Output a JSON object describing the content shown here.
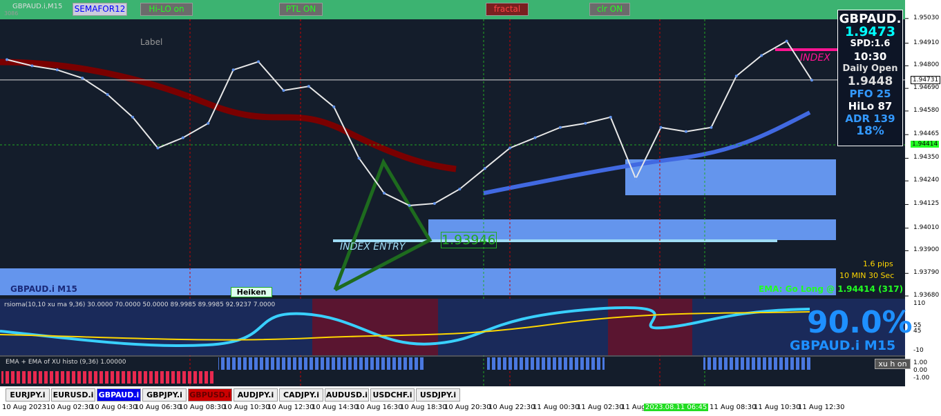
{
  "window": {
    "symbol": "GBPAUD.i,M15",
    "bars": "3086",
    "label": "Label"
  },
  "toolbar": [
    "SEMAFOR12",
    "Hi-LO on",
    "PTL ON",
    "fractal",
    "clr ON"
  ],
  "info_panel": {
    "symbol": "GBPAUD.",
    "bid": "1.9473",
    "spread": "SPD:1.6",
    "timer": "10:30",
    "daily_open_label": "Daily Open",
    "daily_open": "1.9448",
    "pfo": "PFO  25",
    "hilo": "HiLo  87",
    "adr": "ADR 139",
    "percent": "18%"
  },
  "price": {
    "ylim": [
      1.9367,
      1.9512
    ],
    "yticks": [
      {
        "value": 1.9503,
        "label": "1.95030"
      },
      {
        "value": 1.9491,
        "label": "1.94910"
      },
      {
        "value": 1.948,
        "label": "1.94800"
      },
      {
        "value": 1.9469,
        "label": "1.94690"
      },
      {
        "value": 1.9458,
        "label": "1.94580"
      },
      {
        "value": 1.94465,
        "label": "1.94465"
      },
      {
        "value": 1.9435,
        "label": "1.94350"
      },
      {
        "value": 1.9424,
        "label": "1.94240"
      },
      {
        "value": 1.94125,
        "label": "1.94125"
      },
      {
        "value": 1.9401,
        "label": "1.94010"
      },
      {
        "value": 1.939,
        "label": "1.93900"
      },
      {
        "value": 1.9379,
        "label": "1.93790"
      },
      {
        "value": 1.9368,
        "label": "1.93680"
      }
    ],
    "current": {
      "value": 1.94731,
      "label": "1.94731"
    },
    "ema": {
      "value": 1.94414,
      "label": "1.94414"
    },
    "values": [
      1.9483,
      1.948,
      1.9478,
      1.9474,
      1.9466,
      1.9455,
      1.944,
      1.9445,
      1.9452,
      1.9478,
      1.9482,
      1.9468,
      1.947,
      1.946,
      1.9435,
      1.9418,
      1.9412,
      1.9413,
      1.942,
      1.943,
      1.944,
      1.9445,
      1.945,
      1.9452,
      1.9455,
      1.9425,
      1.945,
      1.9448,
      1.945,
      1.9475,
      1.9485,
      1.9492,
      1.9473
    ]
  },
  "chart_texts": {
    "index_entry": "INDEX ENTRY",
    "entry_price": "1.93946",
    "index": "INDEX",
    "pips": "1.6 pips",
    "timer": "10 MIN 30 Sec",
    "ema_signal": "EMA: Go Long @ 1.94414 (317)",
    "symbol_label": "GBPAUD.i M15",
    "heiken": "Heiken"
  },
  "rsioma": {
    "title": "rsioma(10,10 xu ma 9,36) 30.0000 70.0000 50.0000 89.9985 89.9985 92.9237 7.0000",
    "percent": "90.0%",
    "symbol": "GBPAUD.i M15",
    "ticks": [
      "110",
      "55",
      "45",
      "-10"
    ]
  },
  "xu": {
    "title": "EMA + EMA of  XU histo (9,36) 1.00000",
    "button": "xu h on",
    "ticks": [
      "1.00",
      "0.00",
      "-1.00"
    ]
  },
  "tabs": [
    "EURJPY.i",
    "EURUSD.i",
    "GBPAUD.i",
    "GBPJPY.i",
    "GBPUSD.i",
    "AUDJPY.i",
    "CADJPY.i",
    "AUDUSD.i",
    "USDCHF.i",
    "USDJPY.i"
  ],
  "time_axis": [
    "10 Aug 2023",
    "10 Aug 02:30",
    "10 Aug 04:30",
    "10 Aug 06:30",
    "10 Aug 08:30",
    "10 Aug 10:30",
    "10 Aug 12:30",
    "10 Aug 14:30",
    "10 Aug 16:30",
    "10 Aug 18:30",
    "10 Aug 20:30",
    "10 Aug 22:30",
    "11 Aug 00:30",
    "11 Aug 02:30",
    "11 Aug",
    "2023.08.11 06:45",
    "11 Aug 08:30",
    "11 Aug 10:30",
    "11 Aug 12:30"
  ]
}
